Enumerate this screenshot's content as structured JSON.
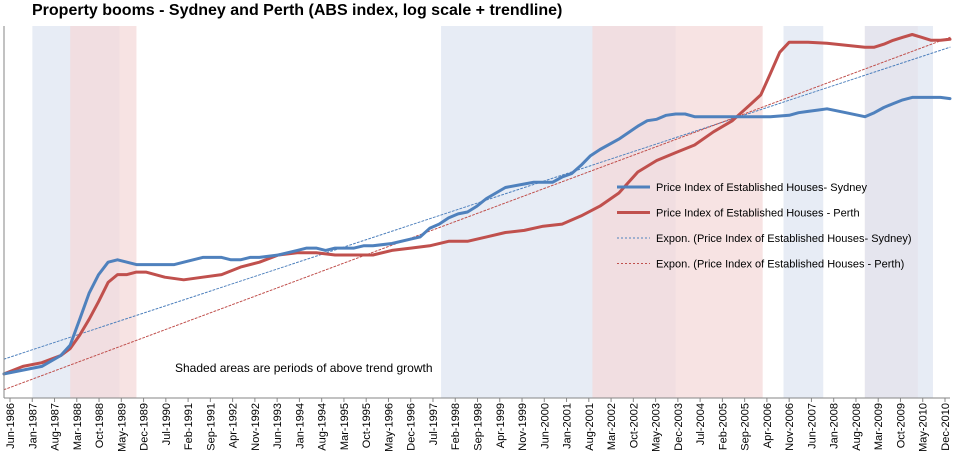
{
  "chart_data": {
    "type": "line",
    "title": "Property booms - Sydney and Perth (ABS index, log scale + trendline)",
    "xlabel": "",
    "ylabel": "",
    "scale": "log",
    "annotation": "Shaded areas are periods of above trend growth",
    "x_ticks": [
      "Jun-1986",
      "Jan-1987",
      "Aug-1987",
      "Mar-1988",
      "Oct-1988",
      "May-1989",
      "Dec-1989",
      "Jul-1990",
      "Feb-1991",
      "Sep-1991",
      "Apr-1992",
      "Nov-1992",
      "Jun-1993",
      "Jan-1994",
      "Aug-1994",
      "Mar-1995",
      "Oct-1995",
      "May-1996",
      "Dec-1996",
      "Jul-1997",
      "Feb-1998",
      "Sep-1998",
      "Apr-1999",
      "Nov-1999",
      "Jun-2000",
      "Jan-2001",
      "Aug-2001",
      "Mar-2002",
      "Oct-2002",
      "May-2003",
      "Dec-2003",
      "Jul-2004",
      "Feb-2005",
      "Sep-2005",
      "Apr-2006",
      "Nov-2006",
      "Jun-2007",
      "Jan-2008",
      "Aug-2008",
      "Mar-2009",
      "Oct-2009",
      "May-2010",
      "Dec-2010"
    ],
    "shaded_periods": [
      {
        "series": "Sydney",
        "start": 1987.0,
        "end": 1989.3,
        "color": "#dfe6f2"
      },
      {
        "series": "Perth",
        "start": 1988.0,
        "end": 1989.75,
        "color": "#f4dada"
      },
      {
        "series": "Sydney",
        "start": 1997.8,
        "end": 2004.0,
        "color": "#dfe6f2"
      },
      {
        "series": "Perth",
        "start": 2001.8,
        "end": 2006.3,
        "color": "#f4dada"
      },
      {
        "series": "Sydney",
        "start": 2006.85,
        "end": 2007.9,
        "color": "#dfe6f2"
      },
      {
        "series": "Perth",
        "start": 2009.0,
        "end": 2010.4,
        "color": "#f4dada"
      },
      {
        "series": "Sydney",
        "start": 2009.0,
        "end": 2010.8,
        "color": "#dfe6f2"
      }
    ],
    "series": [
      {
        "name": "Price Index of Established Houses-  Sydney",
        "color": "#4f81bd",
        "style": "solid",
        "x": [
          1986.25,
          1986.75,
          1987.25,
          1987.75,
          1988.0,
          1988.25,
          1988.5,
          1988.75,
          1989.0,
          1989.25,
          1989.5,
          1989.75,
          1990.0,
          1990.25,
          1990.5,
          1990.75,
          1991.0,
          1991.5,
          1992.0,
          1992.25,
          1992.5,
          1992.75,
          1993.0,
          1993.5,
          1994.0,
          1994.25,
          1994.5,
          1994.75,
          1995.0,
          1995.25,
          1995.5,
          1995.75,
          1996.0,
          1996.5,
          1997.0,
          1997.25,
          1997.5,
          1997.75,
          1998.0,
          1998.25,
          1998.5,
          1998.75,
          1999.0,
          1999.5,
          2000.0,
          2000.25,
          2000.5,
          2000.75,
          2001.0,
          2001.25,
          2001.5,
          2001.75,
          2002.0,
          2002.5,
          2003.0,
          2003.25,
          2003.5,
          2003.75,
          2004.0,
          2004.25,
          2004.5,
          2004.75,
          2005.0,
          2005.5,
          2006.0,
          2006.5,
          2007.0,
          2007.25,
          2007.5,
          2007.75,
          2008.0,
          2008.5,
          2009.0,
          2009.25,
          2009.5,
          2009.75,
          2010.0,
          2010.25,
          2010.5,
          2010.75,
          2011.0,
          2011.25
        ],
        "values": [
          64,
          65,
          66,
          69,
          72,
          80,
          89,
          96,
          101,
          102,
          101,
          100,
          100,
          100,
          100,
          100,
          101,
          103,
          103,
          102,
          102,
          103,
          103,
          104,
          106,
          107,
          107,
          106,
          107,
          107,
          107,
          108,
          108,
          109,
          111,
          112,
          116,
          118,
          121,
          123,
          124,
          127,
          131,
          137,
          139,
          140,
          140,
          140,
          143,
          145,
          150,
          156,
          160,
          167,
          176,
          180,
          181,
          184,
          185,
          185,
          183,
          183,
          183,
          183,
          183,
          183,
          184,
          186,
          187,
          188,
          189,
          186,
          183,
          186,
          190,
          193,
          196,
          198,
          198,
          198,
          198,
          197
        ]
      },
      {
        "name": "Price Index of Established Houses - Perth",
        "color": "#c0504d",
        "style": "solid",
        "x": [
          1986.25,
          1986.75,
          1987.25,
          1987.75,
          1988.0,
          1988.25,
          1988.5,
          1988.75,
          1989.0,
          1989.25,
          1989.5,
          1989.75,
          1990.0,
          1990.5,
          1991.0,
          1991.5,
          1992.0,
          1992.5,
          1993.0,
          1993.5,
          1994.0,
          1994.5,
          1995.0,
          1995.5,
          1996.0,
          1996.5,
          1997.0,
          1997.5,
          1998.0,
          1998.5,
          1999.0,
          1999.5,
          2000.0,
          2000.5,
          2001.0,
          2001.5,
          2002.0,
          2002.5,
          2003.0,
          2003.5,
          2004.0,
          2004.5,
          2005.0,
          2005.5,
          2006.0,
          2006.25,
          2006.5,
          2006.75,
          2007.0,
          2007.5,
          2008.0,
          2008.5,
          2009.0,
          2009.25,
          2009.5,
          2009.75,
          2010.0,
          2010.25,
          2010.5,
          2010.75,
          2011.0,
          2011.25
        ],
        "values": [
          64,
          66,
          67,
          69,
          71,
          75,
          80,
          86,
          93,
          96,
          96,
          97,
          97,
          95,
          94,
          95,
          96,
          99,
          101,
          104,
          105,
          105,
          104,
          104,
          104,
          106,
          107,
          108,
          110,
          110,
          112,
          114,
          115,
          117,
          118,
          122,
          127,
          134,
          146,
          153,
          158,
          163,
          172,
          180,
          193,
          200,
          218,
          238,
          248,
          248,
          247,
          245,
          243,
          243,
          246,
          250,
          253,
          256,
          253,
          250,
          250,
          251
        ]
      },
      {
        "name": "Expon. (Price Index of Established Houses-  Sydney)",
        "color": "#4f81bd",
        "style": "dotted",
        "x": [
          1986.25,
          2011.25
        ],
        "values": [
          68,
          243
        ]
      },
      {
        "name": "Expon. (Price Index of Established Houses - Perth)",
        "color": "#c0504d",
        "style": "dotted",
        "x": [
          1986.25,
          2011.25
        ],
        "values": [
          60,
          253
        ]
      }
    ]
  }
}
